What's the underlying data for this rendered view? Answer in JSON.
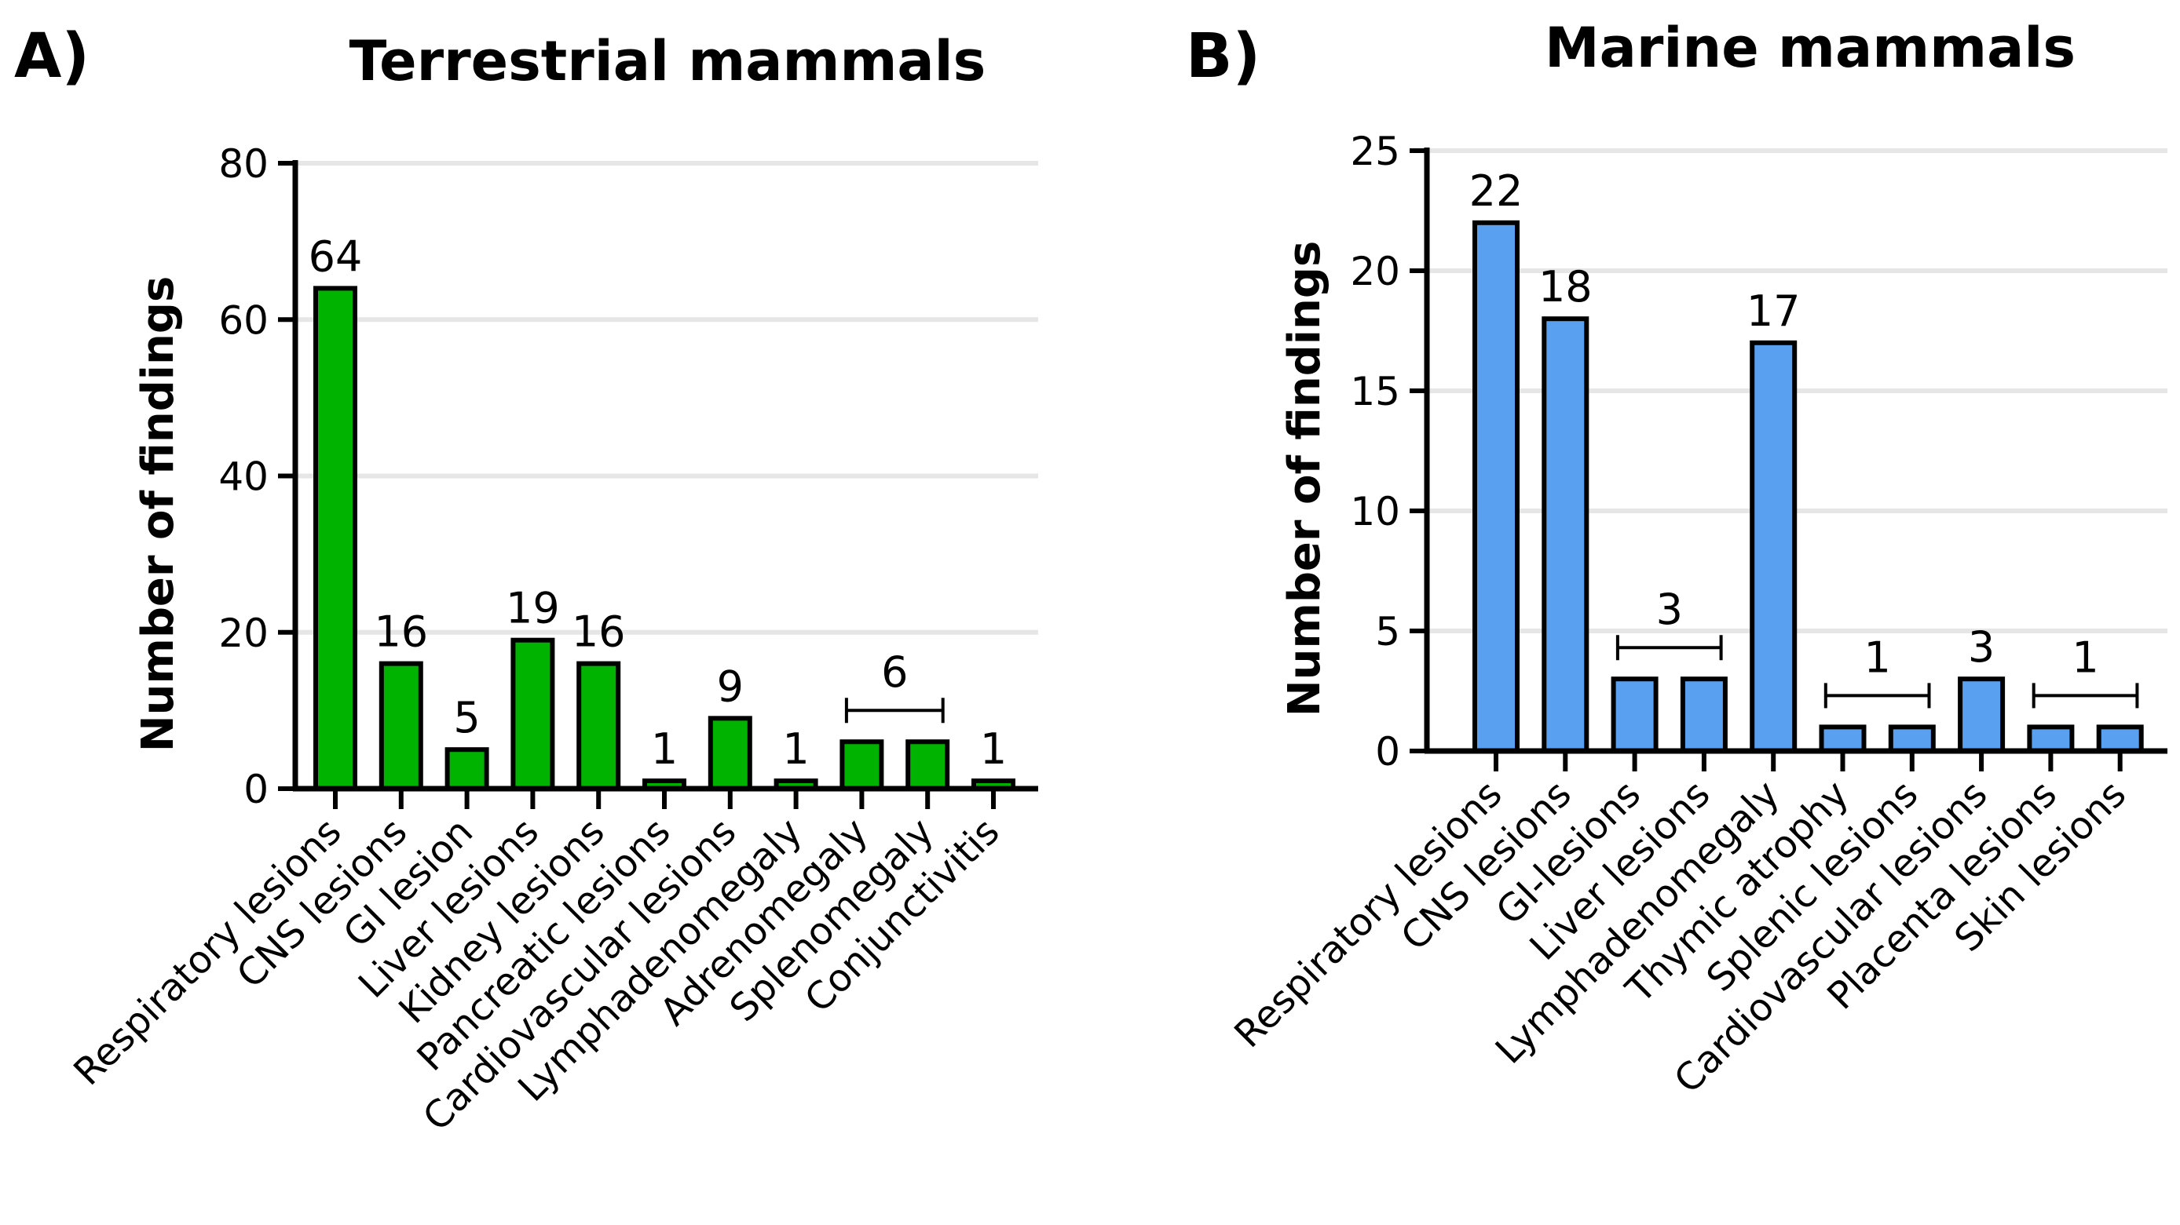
{
  "panels": [
    {
      "letter": "A)",
      "title": "Terrestrial mammals",
      "ylabel": "Number of findings"
    },
    {
      "letter": "B)",
      "title": "Marine mammals",
      "ylabel": "Number of findings"
    }
  ],
  "chart_data": [
    {
      "type": "bar",
      "title": "Terrestrial mammals",
      "panel_label": "A)",
      "xlabel": "",
      "ylabel": "Number of findings",
      "ylim": [
        0,
        80
      ],
      "yticks": [
        0,
        20,
        40,
        60,
        80
      ],
      "grid": true,
      "bar_color": "#00b300",
      "categories": [
        "Respiratory lesions",
        "CNS lesions",
        "GI lesion",
        "Liver lesions",
        "Kidney lesions",
        "Pancreatic lesions",
        "Cardiovascular lesions",
        "Lymphadenomegaly",
        "Adrenomegaly",
        "Splenomegaly",
        "Conjunctivitis"
      ],
      "values": [
        64,
        16,
        5,
        19,
        16,
        1,
        9,
        1,
        6,
        6,
        1
      ],
      "annotations": [
        {
          "text": "64",
          "start": 0,
          "end": 0,
          "value": 64
        },
        {
          "text": "16",
          "start": 1,
          "end": 1,
          "value": 16
        },
        {
          "text": "5",
          "start": 2,
          "end": 2,
          "value": 5
        },
        {
          "text": "19",
          "start": 3,
          "end": 3,
          "value": 19
        },
        {
          "text": "16",
          "start": 4,
          "end": 4,
          "value": 16
        },
        {
          "text": "1",
          "start": 5,
          "end": 5,
          "value": 1
        },
        {
          "text": "9",
          "start": 6,
          "end": 6,
          "value": 9
        },
        {
          "text": "1",
          "start": 7,
          "end": 7,
          "value": 1
        },
        {
          "text": "6",
          "start": 8,
          "end": 9,
          "value": 6
        },
        {
          "text": "1",
          "start": 10,
          "end": 10,
          "value": 1
        }
      ]
    },
    {
      "type": "bar",
      "title": "Marine mammals",
      "panel_label": "B)",
      "xlabel": "",
      "ylabel": "Number of findings",
      "ylim": [
        0,
        25
      ],
      "yticks": [
        0,
        5,
        10,
        15,
        20,
        25
      ],
      "grid": true,
      "bar_color": "#5aa0f0",
      "categories": [
        "Respiratory lesions",
        "CNS lesions",
        "GI-lesions",
        "Liver lesions",
        "Lymphadenomegaly",
        "Thymic atrophy",
        "Splenic lesions",
        "Cardiovascular lesions",
        "Placenta lesions",
        "Skin lesions"
      ],
      "values": [
        22,
        18,
        3,
        3,
        17,
        1,
        1,
        3,
        1,
        1
      ],
      "annotations": [
        {
          "text": "22",
          "start": 0,
          "end": 0,
          "value": 22
        },
        {
          "text": "18",
          "start": 1,
          "end": 1,
          "value": 18
        },
        {
          "text": "3",
          "start": 2,
          "end": 3,
          "value": 3
        },
        {
          "text": "17",
          "start": 4,
          "end": 4,
          "value": 17
        },
        {
          "text": "1",
          "start": 5,
          "end": 6,
          "value": 1
        },
        {
          "text": "3",
          "start": 7,
          "end": 7,
          "value": 3
        },
        {
          "text": "1",
          "start": 8,
          "end": 9,
          "value": 1
        }
      ]
    }
  ]
}
